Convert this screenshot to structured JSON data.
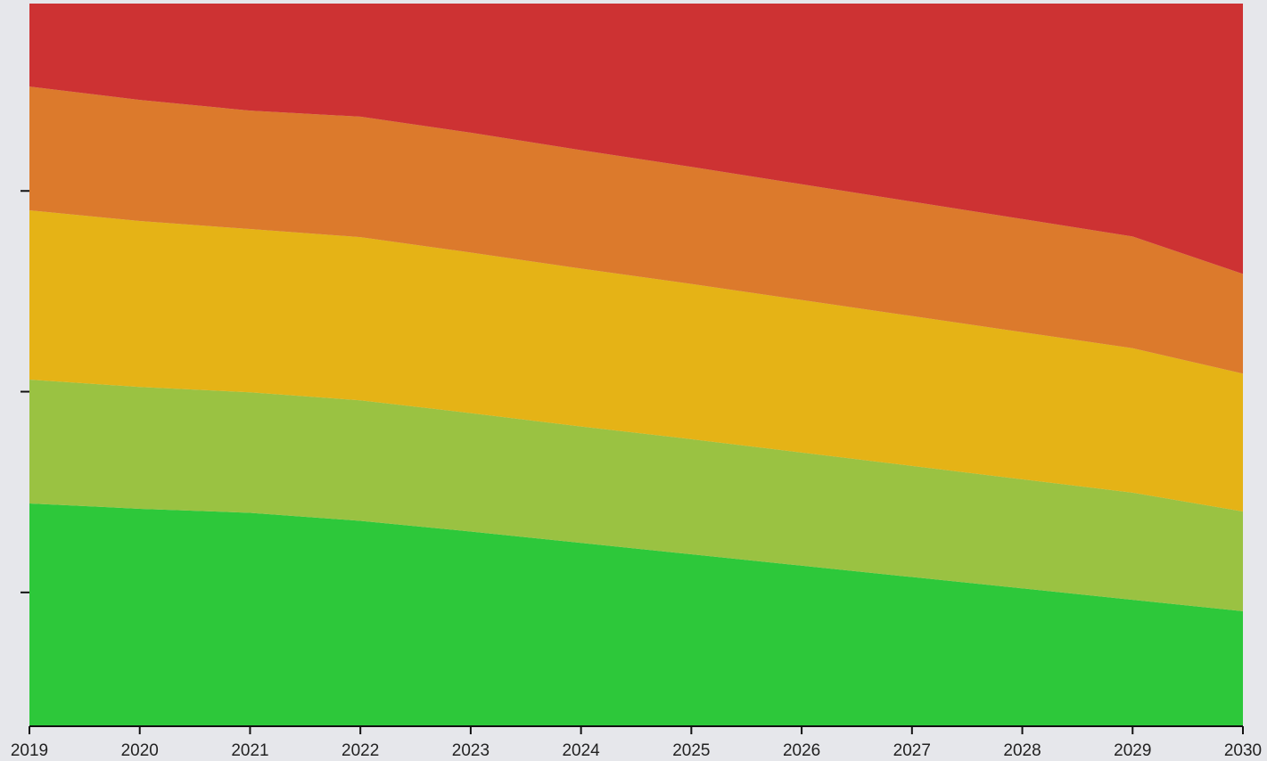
{
  "chart_data": {
    "type": "area",
    "stacked": true,
    "x": [
      2019,
      2020,
      2021,
      2022,
      2023,
      2024,
      2025,
      2026,
      2027,
      2028,
      2029,
      2030
    ],
    "x_tick_labels": [
      "2019",
      "2020",
      "2021",
      "2022",
      "2023",
      "2024",
      "2025",
      "2026",
      "2027",
      "2028",
      "2029",
      "2030"
    ],
    "xlim": [
      2019,
      2030
    ],
    "ylim": [
      0,
      1.08
    ],
    "y_ticks": [
      0.2,
      0.5,
      0.8
    ],
    "y_tick_labels": [],
    "grid": false,
    "legend": "none",
    "title": "",
    "xlabel": "",
    "ylabel": "",
    "series": [
      {
        "color": "#2dc83a",
        "values": [
          0.333,
          0.325,
          0.319,
          0.307,
          0.291,
          0.274,
          0.257,
          0.24,
          0.223,
          0.206,
          0.189,
          0.172
        ]
      },
      {
        "color": "#9ac242",
        "values": [
          0.185,
          0.182,
          0.18,
          0.18,
          0.177,
          0.174,
          0.172,
          0.169,
          0.166,
          0.163,
          0.16,
          0.149
        ]
      },
      {
        "color": "#e5b316",
        "values": [
          0.253,
          0.248,
          0.244,
          0.244,
          0.24,
          0.236,
          0.232,
          0.228,
          0.224,
          0.22,
          0.216,
          0.206
        ]
      },
      {
        "color": "#dc7a2c",
        "values": [
          0.185,
          0.181,
          0.177,
          0.18,
          0.179,
          0.177,
          0.175,
          0.173,
          0.171,
          0.169,
          0.167,
          0.149
        ]
      },
      {
        "color": "#cd3233",
        "values": [
          0.124,
          0.144,
          0.16,
          0.169,
          0.193,
          0.219,
          0.244,
          0.27,
          0.296,
          0.322,
          0.348,
          0.404
        ]
      }
    ]
  }
}
